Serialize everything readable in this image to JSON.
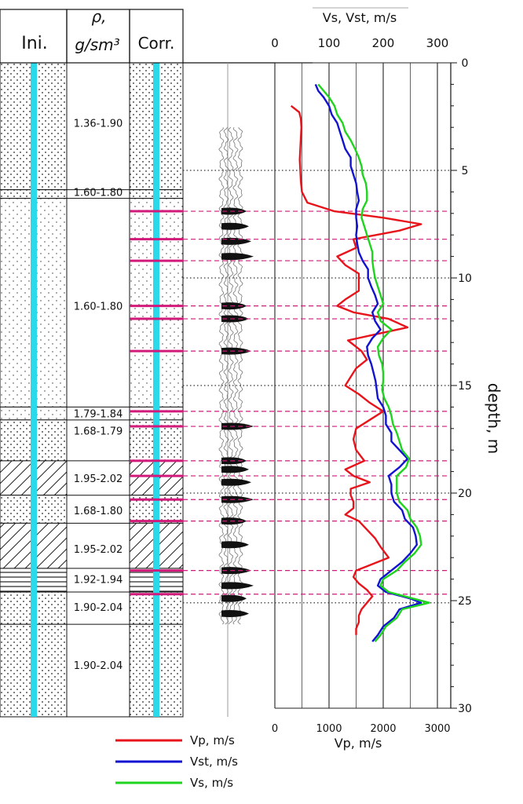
{
  "columns": {
    "ini": "Ini.",
    "rho_sym": "ρ,",
    "rho_unit": "g/sm³",
    "corr": "Corr."
  },
  "depth_axis_label": "depth, m",
  "density_labels": [
    {
      "text": "1.36-1.90",
      "depth": 2.8
    },
    {
      "text": "1.60-1.80",
      "depth": 6.0
    },
    {
      "text": "1.60-1.80",
      "depth": 11.3
    },
    {
      "text": "1.79-1.84",
      "depth": 16.3
    },
    {
      "text": "1.68-1.79",
      "depth": 17.1
    },
    {
      "text": "1.95-2.02",
      "depth": 19.3
    },
    {
      "text": "1.68-1.80",
      "depth": 20.8
    },
    {
      "text": "1.95-2.02",
      "depth": 22.6
    },
    {
      "text": "1.92-1.94",
      "depth": 24.0
    },
    {
      "text": "1.90-2.04",
      "depth": 25.3
    },
    {
      "text": "1.90-2.04",
      "depth": 28.0
    }
  ],
  "lithology": [
    {
      "from": 0,
      "to": 5.9,
      "type": "sand-dots"
    },
    {
      "from": 5.9,
      "to": 6.3,
      "type": "sand-dots"
    },
    {
      "from": 6.3,
      "to": 16.0,
      "type": "sand-fine"
    },
    {
      "from": 16.0,
      "to": 16.6,
      "type": "sand-fine"
    },
    {
      "from": 16.6,
      "to": 18.5,
      "type": "sand-dots"
    },
    {
      "from": 18.5,
      "to": 20.1,
      "type": "clay-hatch"
    },
    {
      "from": 20.1,
      "to": 21.4,
      "type": "sand-dots"
    },
    {
      "from": 21.4,
      "to": 23.5,
      "type": "clay-hatch"
    },
    {
      "from": 23.5,
      "to": 24.6,
      "type": "clay-lines"
    },
    {
      "from": 24.6,
      "to": 26.1,
      "type": "sand-dots"
    },
    {
      "from": 26.1,
      "to": 30.4,
      "type": "sand-dots"
    }
  ],
  "chart_data": {
    "type": "line",
    "title": "",
    "top_axis_label": "Vs, Vst, m/s",
    "top_ticks": [
      "0",
      "100",
      "200",
      "300"
    ],
    "top_range": [
      0,
      300
    ],
    "bottom_axis_label": "Vp, m/s",
    "bottom_ticks": [
      "0",
      "1000",
      "2000",
      "3000"
    ],
    "bottom_range": [
      0,
      3000
    ],
    "depth_ticks": [
      "0",
      "5",
      "10",
      "15",
      "20",
      "25",
      "30"
    ],
    "depth_range": [
      0,
      30
    ],
    "legend_position": "bottom-center",
    "boundaries_dashed": [
      6.9,
      8.2,
      9.2,
      11.3,
      11.9,
      13.4,
      16.2,
      16.9,
      18.5,
      19.2,
      20.3,
      21.3,
      23.6,
      24.7
    ],
    "boundaries_dotted": [
      5.0,
      10.0,
      15.0,
      20.0,
      25.1
    ],
    "series": [
      {
        "name": "Vp, m/s",
        "axis": "bottom",
        "color": "#e8141b",
        "depth": [
          2.0,
          2.3,
          2.6,
          3.0,
          3.5,
          4.0,
          4.5,
          5.0,
          5.5,
          6.0,
          6.5,
          6.9,
          7.2,
          7.5,
          7.8,
          8.2,
          8.6,
          9.0,
          9.4,
          9.8,
          10.2,
          10.6,
          11.0,
          11.3,
          11.6,
          11.9,
          12.3,
          12.6,
          12.9,
          13.4,
          13.8,
          14.2,
          14.6,
          15.0,
          15.4,
          15.8,
          16.2,
          16.6,
          17.0,
          17.5,
          18.0,
          18.5,
          18.9,
          19.2,
          19.5,
          19.8,
          20.1,
          20.4,
          20.7,
          21.0,
          21.3,
          21.7,
          22.1,
          22.5,
          23.0,
          23.4,
          23.6,
          23.9,
          24.2,
          24.5,
          24.8,
          25.1,
          25.4,
          25.7,
          26.0,
          26.3,
          26.6
        ],
        "values": [
          300,
          450,
          480,
          490,
          480,
          470,
          460,
          470,
          480,
          500,
          600,
          1100,
          2000,
          2700,
          2300,
          1450,
          1500,
          1150,
          1300,
          1550,
          1550,
          1550,
          1300,
          1150,
          1450,
          2100,
          2450,
          1900,
          1350,
          1600,
          1700,
          1500,
          1400,
          1300,
          1550,
          1750,
          2000,
          1750,
          1500,
          1450,
          1500,
          1650,
          1300,
          1450,
          1750,
          1400,
          1400,
          1450,
          1450,
          1300,
          1550,
          1700,
          1850,
          1950,
          2100,
          1700,
          1500,
          1450,
          1550,
          1700,
          1800,
          1700,
          1600,
          1550,
          1550,
          1500,
          1500
        ]
      },
      {
        "name": "Vst, m/s",
        "axis": "top",
        "color": "#1212d0",
        "depth": [
          1.0,
          1.3,
          1.6,
          2.0,
          2.4,
          2.8,
          3.2,
          3.6,
          4.0,
          4.4,
          4.8,
          5.2,
          5.6,
          6.0,
          6.4,
          6.8,
          7.2,
          7.6,
          8.0,
          8.4,
          8.8,
          9.2,
          9.6,
          10.0,
          10.4,
          10.8,
          11.2,
          11.6,
          12.0,
          12.4,
          12.8,
          13.2,
          13.6,
          14.0,
          14.4,
          14.8,
          15.2,
          15.6,
          16.0,
          16.4,
          16.8,
          17.2,
          17.6,
          18.0,
          18.4,
          18.8,
          19.2,
          19.6,
          20.0,
          20.4,
          20.8,
          21.2,
          21.6,
          22.0,
          22.4,
          22.8,
          23.2,
          23.6,
          24.0,
          24.3,
          24.6,
          24.9,
          25.1,
          25.4,
          25.8,
          26.2,
          26.6,
          26.9
        ],
        "values": [
          75,
          80,
          90,
          100,
          105,
          115,
          120,
          125,
          130,
          140,
          140,
          145,
          150,
          152,
          155,
          150,
          150,
          152,
          150,
          152,
          155,
          162,
          172,
          172,
          178,
          185,
          190,
          180,
          185,
          195,
          180,
          170,
          172,
          178,
          182,
          186,
          188,
          190,
          200,
          205,
          205,
          215,
          215,
          230,
          245,
          230,
          210,
          215,
          215,
          220,
          235,
          240,
          255,
          260,
          262,
          250,
          235,
          215,
          195,
          190,
          205,
          250,
          270,
          230,
          220,
          200,
          190,
          180
        ]
      },
      {
        "name": "Vs, m/s",
        "axis": "top",
        "color": "#1fd41f",
        "depth": [
          1.0,
          1.3,
          1.6,
          2.0,
          2.4,
          2.8,
          3.2,
          3.6,
          4.0,
          4.4,
          4.8,
          5.2,
          5.6,
          6.0,
          6.4,
          6.8,
          7.2,
          7.6,
          8.0,
          8.4,
          8.8,
          9.2,
          9.6,
          10.0,
          10.4,
          10.8,
          11.2,
          11.6,
          12.0,
          12.4,
          12.8,
          13.2,
          13.6,
          14.0,
          14.4,
          14.8,
          15.2,
          15.6,
          16.0,
          16.4,
          16.8,
          17.2,
          17.6,
          18.0,
          18.4,
          18.8,
          19.2,
          19.6,
          20.0,
          20.4,
          20.8,
          21.2,
          21.6,
          22.0,
          22.4,
          22.8,
          23.2,
          23.6,
          24.0,
          24.3,
          24.6,
          24.9,
          25.1,
          25.4,
          25.8,
          26.2,
          26.6,
          26.9
        ],
        "values": [
          80,
          90,
          100,
          110,
          115,
          125,
          130,
          140,
          148,
          155,
          160,
          162,
          168,
          170,
          170,
          162,
          160,
          165,
          170,
          175,
          180,
          180,
          182,
          185,
          190,
          195,
          200,
          190,
          195,
          215,
          200,
          190,
          192,
          198,
          200,
          200,
          198,
          202,
          210,
          215,
          218,
          225,
          230,
          235,
          248,
          242,
          225,
          225,
          225,
          230,
          245,
          250,
          262,
          268,
          270,
          258,
          240,
          225,
          200,
          195,
          210,
          255,
          285,
          235,
          225,
          205,
          195,
          185
        ]
      }
    ]
  }
}
